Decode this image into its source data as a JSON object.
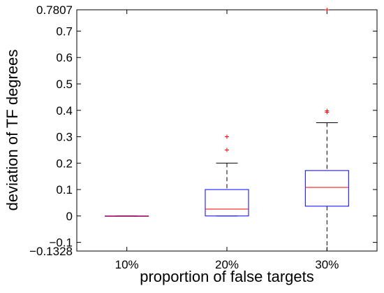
{
  "chart_data": {
    "type": "box",
    "title": "",
    "xlabel": "proportion of false targets",
    "ylabel": "deviation of TF degrees",
    "ylim": [
      -0.1328,
      0.7807
    ],
    "yticks": [
      {
        "value": -0.1328,
        "label": "−0.1328"
      },
      {
        "value": -0.1,
        "label": "−0.1"
      },
      {
        "value": 0,
        "label": "0"
      },
      {
        "value": 0.1,
        "label": "0.1"
      },
      {
        "value": 0.2,
        "label": "0.2"
      },
      {
        "value": 0.3,
        "label": "0.3"
      },
      {
        "value": 0.4,
        "label": "0.4"
      },
      {
        "value": 0.5,
        "label": "0.5"
      },
      {
        "value": 0.6,
        "label": "0.6"
      },
      {
        "value": 0.7,
        "label": "0.7"
      },
      {
        "value": 0.7807,
        "label": "0.7807"
      }
    ],
    "categories": [
      "10%",
      "20%",
      "30%"
    ],
    "boxes": [
      {
        "category": "10%",
        "whisker_low": 0.0,
        "q1": 0.0,
        "median": 0.0,
        "q3": 0.0,
        "whisker_high": 0.0,
        "outliers": []
      },
      {
        "category": "20%",
        "whisker_low": 0.0,
        "q1": 0.0,
        "median": 0.026,
        "q3": 0.1,
        "whisker_high": 0.2,
        "outliers": [
          0.25,
          0.3
        ]
      },
      {
        "category": "30%",
        "whisker_low": -0.1328,
        "q1": 0.037,
        "median": 0.108,
        "q3": 0.172,
        "whisker_high": 0.353,
        "outliers": [
          0.393,
          0.398,
          0.7807
        ]
      }
    ],
    "colors": {
      "box": "#0000ff",
      "median": "#ff0000",
      "whisker": "#000000",
      "outlier": "#ff0000",
      "axes": "#000000"
    },
    "grid": false,
    "legend": "none"
  }
}
